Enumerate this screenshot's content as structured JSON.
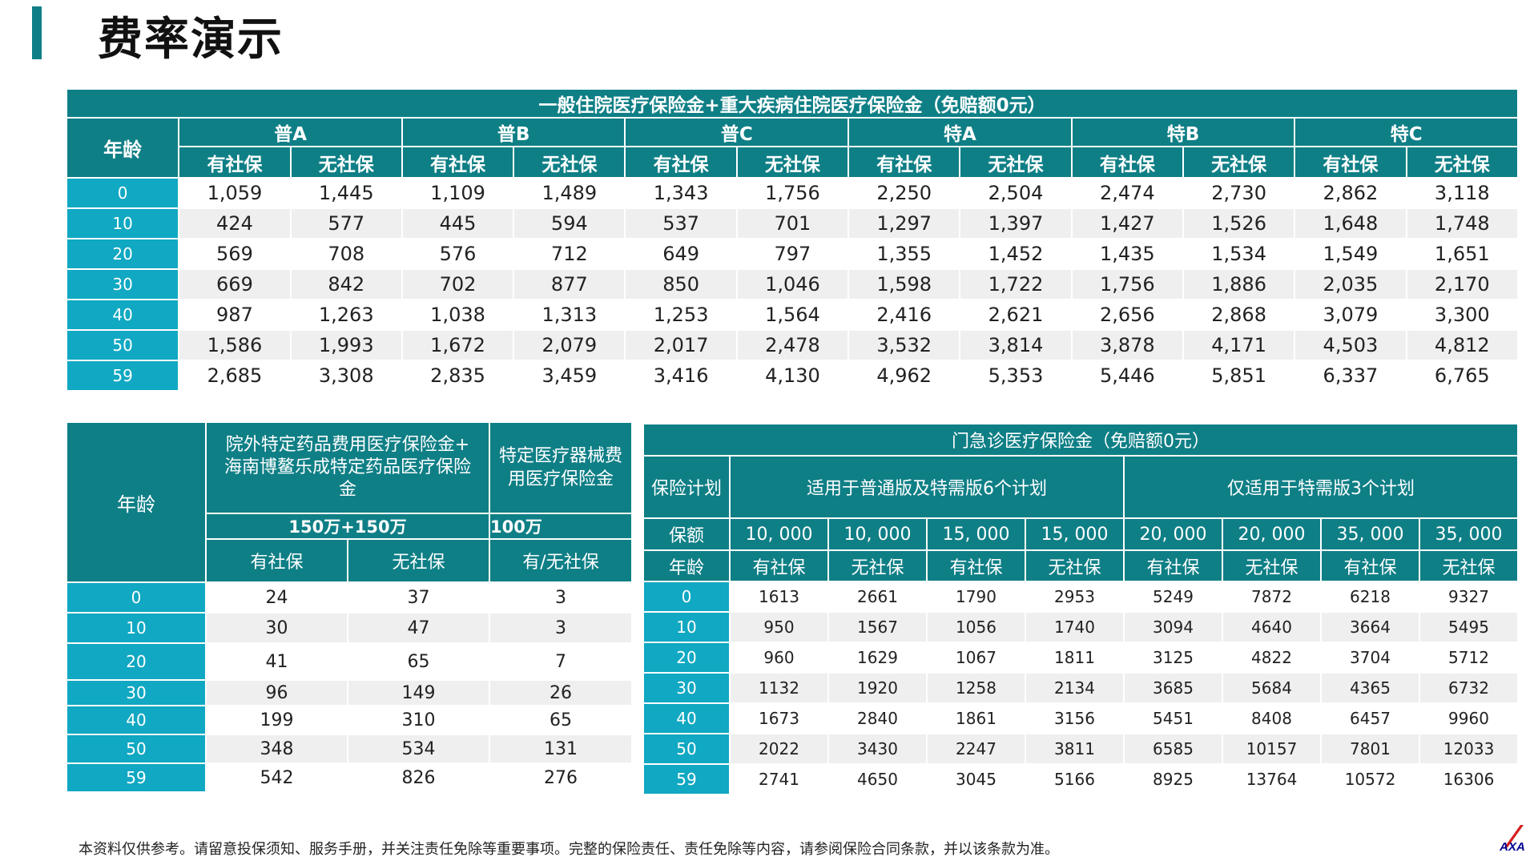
{
  "page": {
    "title": "费率演示",
    "footnote": "本资料仅供参考。请留意投保须知、服务手册，并关注责任免除等重要事项。完整的保险责任、责任免除等内容，请参阅保险合同条款，并以该条款为准。",
    "logo_text": "AXA",
    "accent_color": "#0f7f86",
    "age_color": "#10a8c2"
  },
  "table1": {
    "title": "一般住院医疗保险金+重大疾病住院医疗保险金（免赔额0元）",
    "age_header": "年龄",
    "plans": [
      "普A",
      "普B",
      "普C",
      "特A",
      "特B",
      "特C"
    ],
    "sub_headers": [
      "有社保",
      "无社保",
      "有社保",
      "无社保",
      "有社保",
      "无社保",
      "有社保",
      "无社保",
      "有社保",
      "无社保",
      "有社保",
      "无社保"
    ],
    "rows": [
      {
        "age": "0",
        "values": [
          "1,059",
          "1,445",
          "1,109",
          "1,489",
          "1,343",
          "1,756",
          "2,250",
          "2,504",
          "2,474",
          "2,730",
          "2,862",
          "3,118"
        ]
      },
      {
        "age": "10",
        "values": [
          "424",
          "577",
          "445",
          "594",
          "537",
          "701",
          "1,297",
          "1,397",
          "1,427",
          "1,526",
          "1,648",
          "1,748"
        ]
      },
      {
        "age": "20",
        "values": [
          "569",
          "708",
          "576",
          "712",
          "649",
          "797",
          "1,355",
          "1,452",
          "1,435",
          "1,534",
          "1,549",
          "1,651"
        ]
      },
      {
        "age": "30",
        "values": [
          "669",
          "842",
          "702",
          "877",
          "850",
          "1,046",
          "1,598",
          "1,722",
          "1,756",
          "1,886",
          "2,035",
          "2,170"
        ]
      },
      {
        "age": "40",
        "values": [
          "987",
          "1,263",
          "1,038",
          "1,313",
          "1,253",
          "1,564",
          "2,416",
          "2,621",
          "2,656",
          "2,868",
          "3,079",
          "3,300"
        ]
      },
      {
        "age": "50",
        "values": [
          "1,586",
          "1,993",
          "1,672",
          "2,079",
          "2,017",
          "2,478",
          "3,532",
          "3,814",
          "3,878",
          "4,171",
          "4,503",
          "4,812"
        ]
      },
      {
        "age": "59",
        "values": [
          "2,685",
          "3,308",
          "2,835",
          "3,459",
          "3,416",
          "4,130",
          "4,962",
          "5,353",
          "5,446",
          "5,851",
          "6,337",
          "6,765"
        ]
      }
    ]
  },
  "table2": {
    "age_header": "年龄",
    "drug_header_line1": "院外特定药品费用医疗保险金+",
    "drug_header_line2": "海南博鳌乐成特定药品医疗保险",
    "drug_header_line3": "金",
    "device_header_line1": "特定医疗器械费",
    "device_header_line2": "用医疗保险金",
    "drug_amount": "150万+150万",
    "device_amount": "100万",
    "sub_headers": [
      "有社保",
      "无社保",
      "有/无社保"
    ],
    "rows": [
      {
        "age": "0",
        "values": [
          "24",
          "37",
          "3"
        ]
      },
      {
        "age": "10",
        "values": [
          "30",
          "47",
          "3"
        ]
      },
      {
        "age": "20",
        "values": [
          "41",
          "65",
          "7"
        ]
      },
      {
        "age": "30",
        "values": [
          "96",
          "149",
          "26"
        ]
      },
      {
        "age": "40",
        "values": [
          "199",
          "310",
          "65"
        ]
      },
      {
        "age": "50",
        "values": [
          "348",
          "534",
          "131"
        ]
      },
      {
        "age": "59",
        "values": [
          "542",
          "826",
          "276"
        ]
      }
    ]
  },
  "table3": {
    "title": "门急诊医疗保险金（免赔额0元）",
    "plan_label": "保险计划",
    "group1": "适用于普通版及特需版6个计划",
    "group2": "仅适用于特需版3个计划",
    "amount_label": "保额",
    "age_header": "年龄",
    "amounts": [
      "10, 000",
      "10, 000",
      "15, 000",
      "15, 000",
      "20, 000",
      "20, 000",
      "35, 000",
      "35, 000"
    ],
    "sub_headers": [
      "有社保",
      "无社保",
      "有社保",
      "无社保",
      "有社保",
      "无社保",
      "有社保",
      "无社保"
    ],
    "rows": [
      {
        "age": "0",
        "values": [
          "1613",
          "2661",
          "1790",
          "2953",
          "5249",
          "7872",
          "6218",
          "9327"
        ]
      },
      {
        "age": "10",
        "values": [
          "950",
          "1567",
          "1056",
          "1740",
          "3094",
          "4640",
          "3664",
          "5495"
        ]
      },
      {
        "age": "20",
        "values": [
          "960",
          "1629",
          "1067",
          "1811",
          "3125",
          "4822",
          "3704",
          "5712"
        ]
      },
      {
        "age": "30",
        "values": [
          "1132",
          "1920",
          "1258",
          "2134",
          "3685",
          "5684",
          "4365",
          "6732"
        ]
      },
      {
        "age": "40",
        "values": [
          "1673",
          "2840",
          "1861",
          "3156",
          "5451",
          "8408",
          "6457",
          "9960"
        ]
      },
      {
        "age": "50",
        "values": [
          "2022",
          "3430",
          "2247",
          "3811",
          "6585",
          "10157",
          "7801",
          "12033"
        ]
      },
      {
        "age": "59",
        "values": [
          "2741",
          "4650",
          "3045",
          "5166",
          "8925",
          "13764",
          "10572",
          "16306"
        ]
      }
    ]
  }
}
